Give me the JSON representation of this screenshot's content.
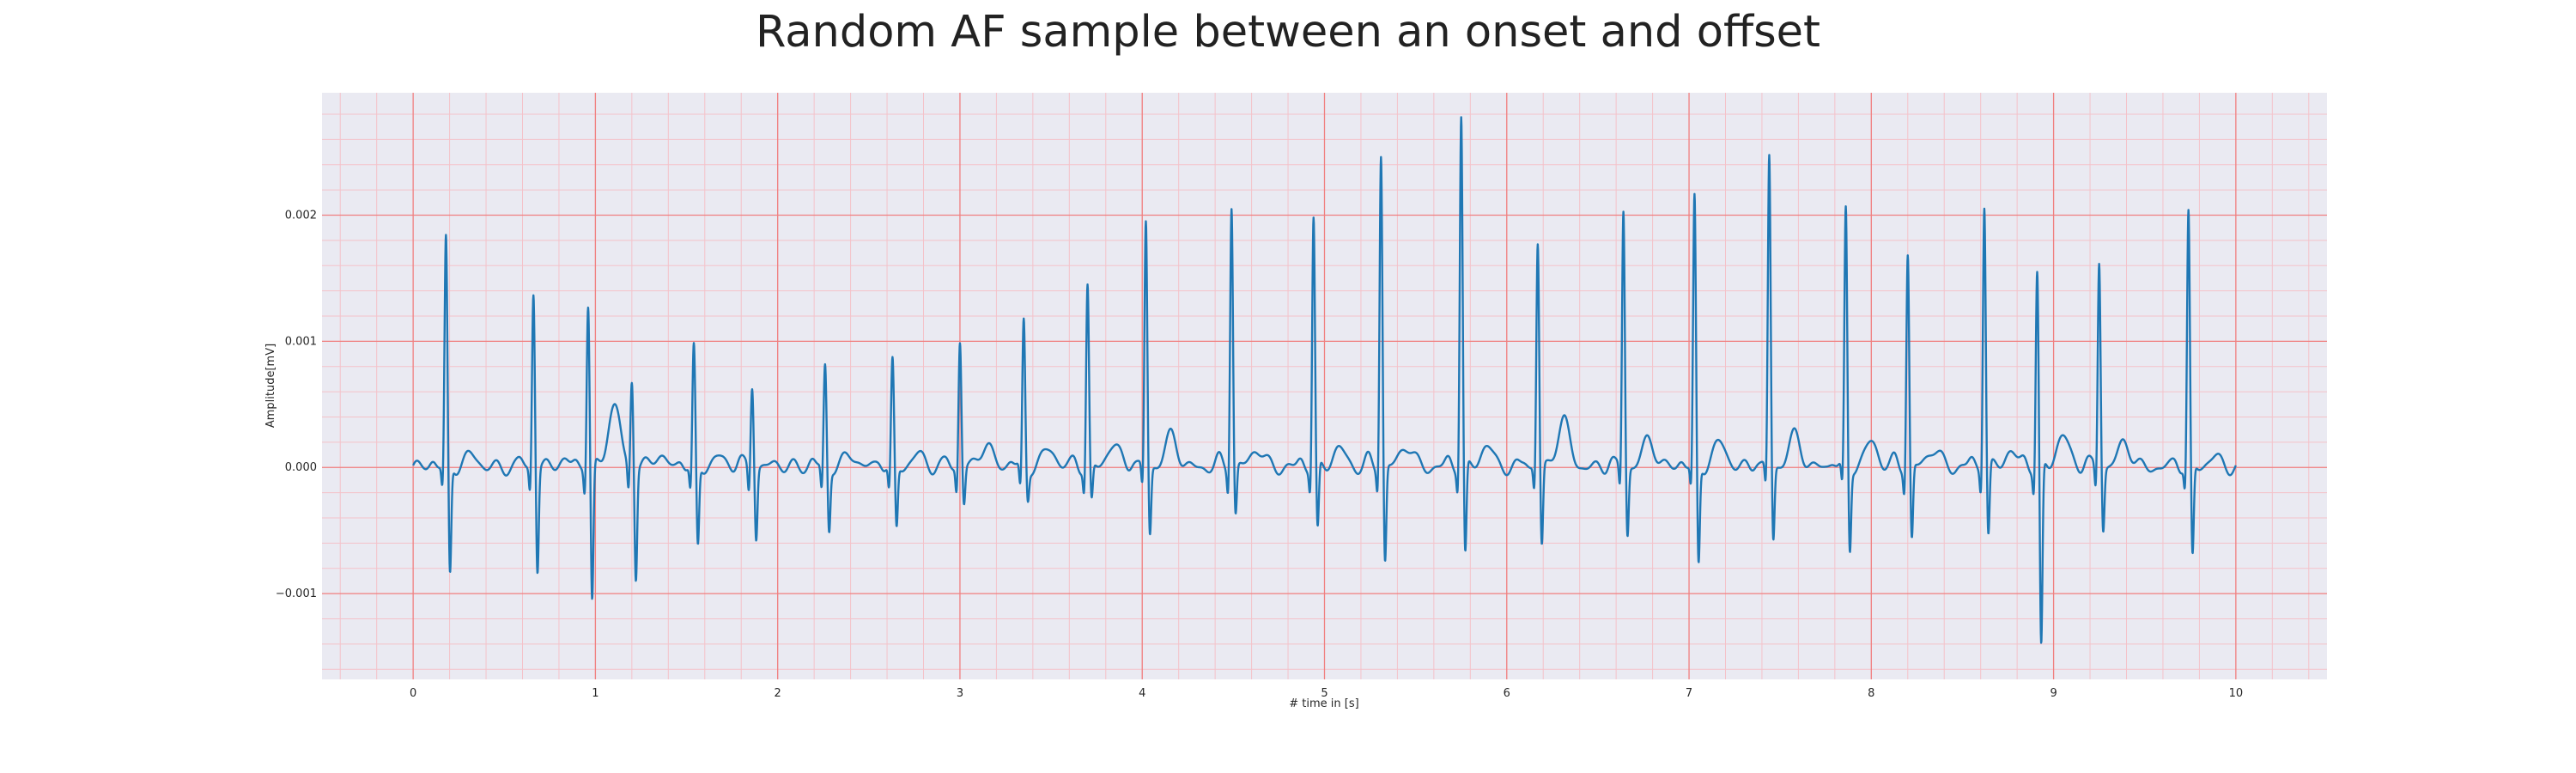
{
  "chart_data": {
    "type": "line",
    "title": "Random AF sample between an onset and offset",
    "xlabel": "# time in [s]",
    "ylabel": "Amplitude[mV]",
    "xlim": [
      -0.5,
      10.5
    ],
    "ylim": [
      -0.00168,
      0.00297
    ],
    "x_ticks": [
      0,
      1,
      2,
      3,
      4,
      5,
      6,
      7,
      8,
      9,
      10
    ],
    "x_tick_labels": [
      "0",
      "1",
      "2",
      "3",
      "4",
      "5",
      "6",
      "7",
      "8",
      "9",
      "10"
    ],
    "y_ticks": [
      -0.001,
      0.0,
      0.001,
      0.002
    ],
    "y_tick_labels": [
      "−0.001",
      "0.000",
      "0.001",
      "0.002"
    ],
    "grid": true,
    "minor_grid": true,
    "colors": {
      "line": "#1f77b4",
      "background": "#eaeaf2",
      "major_grid": "#f08080",
      "minor_grid": "#f4c2c9"
    },
    "beats": [
      {
        "t": 0.18,
        "r": 0.0018,
        "s": -0.00088,
        "t_wave": 0.0001
      },
      {
        "t": 0.66,
        "r": 0.0014,
        "s": -0.00083,
        "t_wave": 5e-05
      },
      {
        "t": 0.96,
        "r": 0.0013,
        "s": -0.0011,
        "t_wave": 0.00045
      },
      {
        "t": 1.2,
        "r": 0.0007,
        "s": -0.00087,
        "t_wave": 0.0001
      },
      {
        "t": 1.54,
        "r": 0.00093,
        "s": -0.00065,
        "t_wave": 8e-05
      },
      {
        "t": 1.86,
        "r": 0.00067,
        "s": -0.00055,
        "t_wave": 3e-05
      },
      {
        "t": 2.26,
        "r": 0.0008,
        "s": -0.0005,
        "t_wave": 0.0001
      },
      {
        "t": 2.63,
        "r": 0.00082,
        "s": -0.0005,
        "t_wave": 0.0001
      },
      {
        "t": 3.0,
        "r": 0.001,
        "s": -0.0003,
        "t_wave": 0.00018
      },
      {
        "t": 3.35,
        "r": 0.00115,
        "s": -0.00025,
        "t_wave": 0.00015
      },
      {
        "t": 3.7,
        "r": 0.00143,
        "s": -0.0003,
        "t_wave": 0.00018
      },
      {
        "t": 4.02,
        "r": 0.00195,
        "s": -0.00055,
        "t_wave": 0.00025
      },
      {
        "t": 4.49,
        "r": 0.0021,
        "s": -0.0004,
        "t_wave": 0.00015
      },
      {
        "t": 4.94,
        "r": 0.00198,
        "s": -0.00055,
        "t_wave": 0.00015
      },
      {
        "t": 5.31,
        "r": 0.0025,
        "s": -0.00078,
        "t_wave": 0.00018
      },
      {
        "t": 5.75,
        "r": 0.0028,
        "s": -0.00075,
        "t_wave": 0.00017
      },
      {
        "t": 6.17,
        "r": 0.00178,
        "s": -0.00065,
        "t_wave": 0.00037
      },
      {
        "t": 6.64,
        "r": 0.00205,
        "s": -0.00055,
        "t_wave": 0.00022
      },
      {
        "t": 7.03,
        "r": 0.00212,
        "s": -0.0008,
        "t_wave": 0.0002
      },
      {
        "t": 7.44,
        "r": 0.00247,
        "s": -0.0006,
        "t_wave": 0.00025
      },
      {
        "t": 7.86,
        "r": 0.00203,
        "s": -0.00067,
        "t_wave": 0.0002
      },
      {
        "t": 8.2,
        "r": 0.0017,
        "s": -0.0006,
        "t_wave": 0.00015
      },
      {
        "t": 8.62,
        "r": 0.0021,
        "s": -0.00058,
        "t_wave": 0.00012
      },
      {
        "t": 8.91,
        "r": 0.00155,
        "s": -0.00148,
        "t_wave": 0.00025
      },
      {
        "t": 9.25,
        "r": 0.00165,
        "s": -0.0005,
        "t_wave": 0.0002
      },
      {
        "t": 9.74,
        "r": 0.002,
        "s": -0.00075,
        "t_wave": 8e-05
      }
    ],
    "x_start": 0,
    "x_end": 10
  }
}
